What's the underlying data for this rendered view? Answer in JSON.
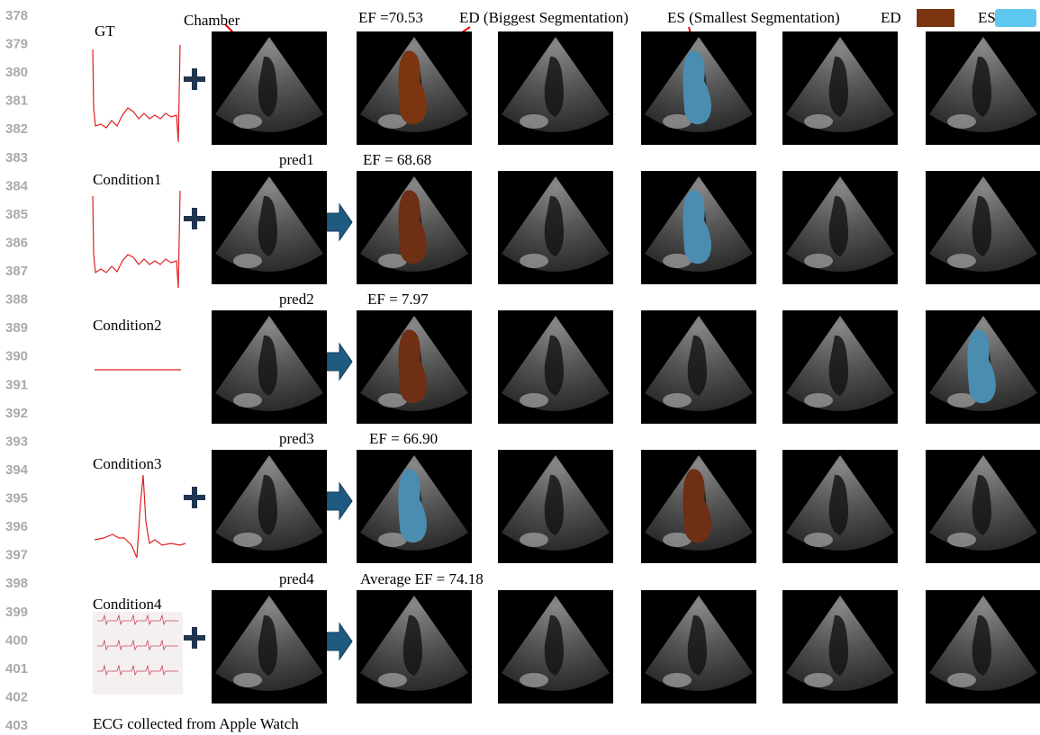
{
  "line_numbers": [
    "378",
    "379",
    "380",
    "381",
    "382",
    "383",
    "384",
    "385",
    "386",
    "387",
    "388",
    "389",
    "390",
    "391",
    "392",
    "393",
    "394",
    "395",
    "396",
    "397",
    "398",
    "399",
    "400",
    "401",
    "402",
    "403"
  ],
  "annotations": {
    "chamber": "Chamber",
    "ed_title": "ED (Biggest Segmentation)",
    "es_title": "ES (Smallest Segmentation)"
  },
  "legend": {
    "ed": "ED",
    "es": "ES"
  },
  "rows": [
    {
      "label": "GT",
      "ef": "EF =70.53"
    },
    {
      "label": "Condition1",
      "pred": "pred1",
      "ef": "EF = 68.68"
    },
    {
      "label": "Condition2",
      "pred": "pred2",
      "ef": "EF = 7.97"
    },
    {
      "label": "Condition3",
      "pred": "pred3",
      "ef": "EF = 66.90"
    },
    {
      "label": "Condition4",
      "pred": "pred4",
      "ef": "Average EF = 74.18"
    }
  ],
  "caption": "ECG collected from Apple Watch"
}
